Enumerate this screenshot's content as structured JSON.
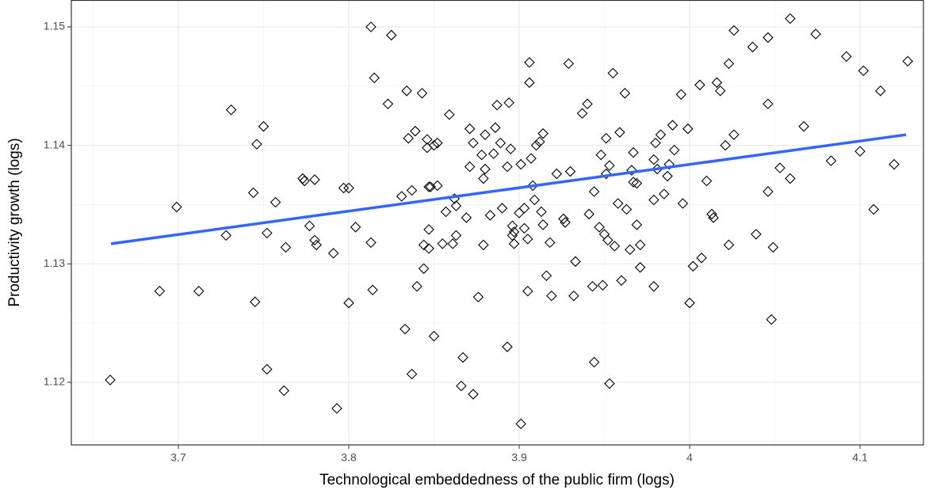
{
  "chart_data": {
    "type": "scatter",
    "x_label": "Technological embeddedness of the public firm (logs)",
    "y_label": "Productivity growth (logs)",
    "xlim": [
      3.6372,
      4.1372
    ],
    "ylim": [
      1.11472,
      1.15227
    ],
    "xticks": [
      3.7,
      3.8,
      3.9,
      4.0,
      4.1
    ],
    "yticks": [
      1.12,
      1.13,
      1.14,
      1.15
    ],
    "grid": true,
    "marker_color": "#000000",
    "x": [
      3.66,
      3.689,
      3.699,
      3.712,
      3.728,
      3.731,
      3.744,
      3.745,
      3.746,
      3.75,
      3.752,
      3.752,
      3.757,
      3.762,
      3.763,
      3.773,
      3.774,
      3.777,
      3.78,
      3.78,
      3.781,
      3.791,
      3.793,
      3.797,
      3.8,
      3.8,
      3.804,
      3.813,
      3.813,
      3.814,
      3.815,
      3.823,
      3.825,
      3.831,
      3.833,
      3.834,
      3.835,
      3.837,
      3.837,
      3.839,
      3.84,
      3.843,
      3.844,
      3.844,
      3.846,
      3.846,
      3.847,
      3.847,
      3.847,
      3.848,
      3.85,
      3.85,
      3.852,
      3.852,
      3.855,
      3.857,
      3.859,
      3.861,
      3.862,
      3.863,
      3.863,
      3.866,
      3.867,
      3.869,
      3.871,
      3.871,
      3.873,
      3.873,
      3.876,
      3.878,
      3.879,
      3.879,
      3.88,
      3.88,
      3.883,
      3.885,
      3.886,
      3.887,
      3.889,
      3.89,
      3.893,
      3.893,
      3.894,
      3.895,
      3.896,
      3.896,
      3.897,
      3.897,
      3.9,
      3.901,
      3.901,
      3.903,
      3.903,
      3.905,
      3.905,
      3.906,
      3.906,
      3.907,
      3.908,
      3.909,
      3.91,
      3.912,
      3.914,
      3.913,
      3.914,
      3.916,
      3.918,
      3.919,
      3.922,
      3.926,
      3.927,
      3.929,
      3.93,
      3.932,
      3.933,
      3.937,
      3.94,
      3.941,
      3.943,
      3.944,
      3.944,
      3.947,
      3.948,
      3.949,
      3.95,
      3.951,
      3.951,
      3.952,
      3.953,
      3.953,
      3.956,
      3.955,
      3.958,
      3.959,
      3.96,
      3.962,
      3.963,
      3.965,
      3.966,
      3.967,
      3.967,
      3.969,
      3.969,
      3.971,
      3.971,
      3.979,
      3.979,
      3.979,
      3.98,
      3.981,
      3.983,
      3.985,
      3.987,
      3.988,
      3.99,
      3.991,
      3.995,
      3.996,
      3.999,
      4.0,
      4.002,
      4.006,
      4.007,
      4.01,
      4.013,
      4.014,
      4.016,
      4.018,
      4.021,
      4.023,
      4.023,
      4.026,
      4.026,
      4.037,
      4.039,
      4.046,
      4.046,
      4.046,
      4.049,
      4.048,
      4.053,
      4.059,
      4.059,
      4.067,
      4.074,
      4.083,
      4.092,
      4.1,
      4.102,
      4.108,
      4.112,
      4.12,
      4.128
    ],
    "y": [
      1.1202,
      1.1277,
      1.1348,
      1.1277,
      1.1324,
      1.143,
      1.136,
      1.1268,
      1.1401,
      1.1416,
      1.1326,
      1.1211,
      1.1352,
      1.1193,
      1.1314,
      1.1372,
      1.137,
      1.1332,
      1.1371,
      1.132,
      1.1316,
      1.1309,
      1.1178,
      1.1364,
      1.1364,
      1.1267,
      1.1331,
      1.15,
      1.1318,
      1.1278,
      1.1457,
      1.1435,
      1.1493,
      1.1357,
      1.1245,
      1.1446,
      1.1406,
      1.1362,
      1.1207,
      1.1412,
      1.1281,
      1.1444,
      1.1296,
      1.1316,
      1.1405,
      1.1398,
      1.1365,
      1.1329,
      1.1313,
      1.1365,
      1.14,
      1.1239,
      1.1402,
      1.1366,
      1.1317,
      1.1344,
      1.1426,
      1.1317,
      1.1355,
      1.1349,
      1.1324,
      1.1197,
      1.1221,
      1.1339,
      1.1382,
      1.1414,
      1.1402,
      1.119,
      1.1272,
      1.1392,
      1.1316,
      1.1372,
      1.138,
      1.1409,
      1.1341,
      1.1393,
      1.1415,
      1.1434,
      1.1402,
      1.1347,
      1.123,
      1.1382,
      1.1436,
      1.1397,
      1.1332,
      1.1324,
      1.1317,
      1.1327,
      1.1343,
      1.1165,
      1.1384,
      1.1347,
      1.133,
      1.1277,
      1.1321,
      1.147,
      1.1453,
      1.1389,
      1.1366,
      1.1354,
      1.14,
      1.1403,
      1.141,
      1.1344,
      1.1333,
      1.129,
      1.1318,
      1.1273,
      1.1376,
      1.1338,
      1.1335,
      1.1469,
      1.1378,
      1.1273,
      1.1302,
      1.1427,
      1.1435,
      1.1342,
      1.1281,
      1.1361,
      1.1217,
      1.1331,
      1.1392,
      1.1282,
      1.1325,
      1.1406,
      1.1376,
      1.132,
      1.1383,
      1.1199,
      1.1315,
      1.1461,
      1.1351,
      1.1411,
      1.1286,
      1.1444,
      1.1346,
      1.1312,
      1.1379,
      1.1394,
      1.1369,
      1.1333,
      1.1368,
      1.1316,
      1.1297,
      1.1281,
      1.1354,
      1.1388,
      1.1402,
      1.138,
      1.1409,
      1.1359,
      1.1374,
      1.1384,
      1.1417,
      1.1396,
      1.1443,
      1.1351,
      1.1414,
      1.1267,
      1.1298,
      1.1451,
      1.1305,
      1.137,
      1.1342,
      1.1339,
      1.1453,
      1.1446,
      1.14,
      1.1316,
      1.1469,
      1.1409,
      1.1497,
      1.1483,
      1.1325,
      1.1361,
      1.1435,
      1.1491,
      1.1314,
      1.1253,
      1.1381,
      1.1372,
      1.1507,
      1.1416,
      1.1494,
      1.1387,
      1.1475,
      1.1395,
      1.1463,
      1.1346,
      1.1446,
      1.1384,
      1.1471
    ],
    "trend": {
      "color": "#3366ff",
      "x": [
        3.6605,
        4.127
      ],
      "y": [
        1.1317,
        1.1409
      ]
    }
  }
}
